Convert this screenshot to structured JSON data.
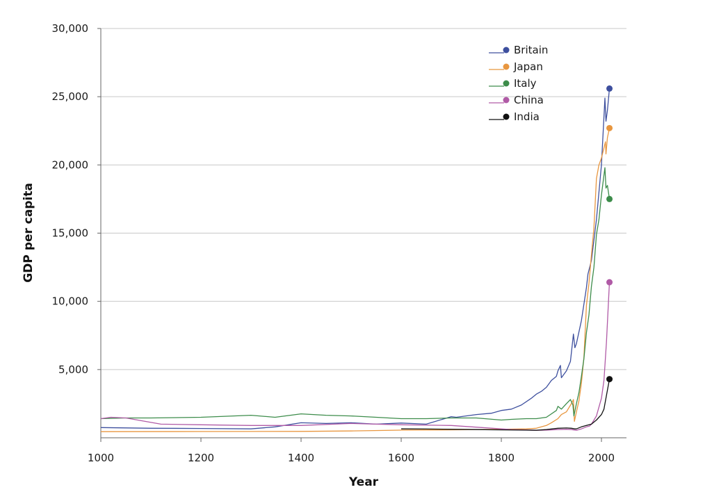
{
  "chart_data": {
    "type": "line",
    "xlabel": "Year",
    "ylabel": "GDP per capita",
    "xlim": [
      1000,
      2050
    ],
    "ylim": [
      0,
      30000
    ],
    "x_ticks": [
      1000,
      1200,
      1400,
      1600,
      1800,
      2000
    ],
    "x_tick_labels": [
      "1000",
      "1200",
      "1400",
      "1600",
      "1800",
      "2000"
    ],
    "y_ticks": [
      5000,
      10000,
      15000,
      20000,
      25000,
      30000
    ],
    "y_tick_labels": [
      "5,000",
      "10,000",
      "15,000",
      "20,000",
      "25,000",
      "30,000"
    ],
    "grid": "horizontal",
    "legend_position": "top-right",
    "series": [
      {
        "name": "Britain",
        "color": "#3d4f9e",
        "points": [
          [
            1000,
            750
          ],
          [
            1100,
            700
          ],
          [
            1200,
            680
          ],
          [
            1300,
            650
          ],
          [
            1348,
            800
          ],
          [
            1400,
            1100
          ],
          [
            1450,
            1050
          ],
          [
            1500,
            1100
          ],
          [
            1550,
            1000
          ],
          [
            1600,
            1080
          ],
          [
            1650,
            1000
          ],
          [
            1700,
            1550
          ],
          [
            1710,
            1500
          ],
          [
            1750,
            1700
          ],
          [
            1780,
            1800
          ],
          [
            1800,
            2000
          ],
          [
            1820,
            2100
          ],
          [
            1840,
            2400
          ],
          [
            1860,
            2900
          ],
          [
            1870,
            3200
          ],
          [
            1880,
            3400
          ],
          [
            1890,
            3700
          ],
          [
            1900,
            4200
          ],
          [
            1910,
            4500
          ],
          [
            1913,
            4900
          ],
          [
            1918,
            5300
          ],
          [
            1920,
            4400
          ],
          [
            1930,
            4900
          ],
          [
            1938,
            5600
          ],
          [
            1944,
            7600
          ],
          [
            1947,
            6600
          ],
          [
            1950,
            6900
          ],
          [
            1960,
            8600
          ],
          [
            1970,
            11000
          ],
          [
            1973,
            12000
          ],
          [
            1980,
            13000
          ],
          [
            1990,
            16000
          ],
          [
            2000,
            20000
          ],
          [
            2007,
            24900
          ],
          [
            2009,
            23200
          ],
          [
            2012,
            24000
          ],
          [
            2016,
            25600
          ]
        ]
      },
      {
        "name": "Japan",
        "color": "#e8963f",
        "points": [
          [
            1000,
            450
          ],
          [
            1200,
            460
          ],
          [
            1400,
            470
          ],
          [
            1500,
            500
          ],
          [
            1600,
            560
          ],
          [
            1700,
            580
          ],
          [
            1800,
            620
          ],
          [
            1850,
            650
          ],
          [
            1870,
            700
          ],
          [
            1890,
            900
          ],
          [
            1900,
            1100
          ],
          [
            1913,
            1400
          ],
          [
            1920,
            1700
          ],
          [
            1930,
            1900
          ],
          [
            1940,
            2500
          ],
          [
            1944,
            2800
          ],
          [
            1946,
            1200
          ],
          [
            1950,
            1900
          ],
          [
            1955,
            2700
          ],
          [
            1960,
            4000
          ],
          [
            1965,
            5900
          ],
          [
            1970,
            9700
          ],
          [
            1975,
            11300
          ],
          [
            1980,
            13400
          ],
          [
            1985,
            15400
          ],
          [
            1990,
            19000
          ],
          [
            1995,
            20000
          ],
          [
            2000,
            20500
          ],
          [
            2008,
            21700
          ],
          [
            2009,
            20800
          ],
          [
            2012,
            22000
          ],
          [
            2016,
            22700
          ]
        ]
      },
      {
        "name": "Italy",
        "color": "#3c8c4a",
        "points": [
          [
            1000,
            1400
          ],
          [
            1050,
            1450
          ],
          [
            1100,
            1450
          ],
          [
            1200,
            1500
          ],
          [
            1300,
            1650
          ],
          [
            1348,
            1500
          ],
          [
            1400,
            1750
          ],
          [
            1450,
            1650
          ],
          [
            1500,
            1600
          ],
          [
            1550,
            1500
          ],
          [
            1600,
            1400
          ],
          [
            1650,
            1400
          ],
          [
            1700,
            1450
          ],
          [
            1750,
            1450
          ],
          [
            1800,
            1300
          ],
          [
            1820,
            1350
          ],
          [
            1850,
            1400
          ],
          [
            1870,
            1400
          ],
          [
            1890,
            1500
          ],
          [
            1900,
            1750
          ],
          [
            1910,
            2000
          ],
          [
            1913,
            2300
          ],
          [
            1920,
            2100
          ],
          [
            1930,
            2500
          ],
          [
            1938,
            2800
          ],
          [
            1943,
            2400
          ],
          [
            1945,
            1600
          ],
          [
            1950,
            2500
          ],
          [
            1955,
            3300
          ],
          [
            1960,
            4500
          ],
          [
            1965,
            5800
          ],
          [
            1970,
            7700
          ],
          [
            1975,
            9000
          ],
          [
            1980,
            11100
          ],
          [
            1985,
            12500
          ],
          [
            1990,
            14900
          ],
          [
            1995,
            16000
          ],
          [
            2000,
            17800
          ],
          [
            2007,
            19800
          ],
          [
            2009,
            18300
          ],
          [
            2012,
            18500
          ],
          [
            2016,
            17500
          ]
        ]
      },
      {
        "name": "China",
        "color": "#b05aa6",
        "points": [
          [
            1000,
            1400
          ],
          [
            1020,
            1500
          ],
          [
            1050,
            1450
          ],
          [
            1120,
            1000
          ],
          [
            1200,
            950
          ],
          [
            1300,
            900
          ],
          [
            1400,
            900
          ],
          [
            1500,
            1050
          ],
          [
            1600,
            950
          ],
          [
            1700,
            900
          ],
          [
            1800,
            650
          ],
          [
            1820,
            600
          ],
          [
            1850,
            580
          ],
          [
            1870,
            550
          ],
          [
            1890,
            560
          ],
          [
            1913,
            600
          ],
          [
            1930,
            620
          ],
          [
            1940,
            600
          ],
          [
            1950,
            550
          ],
          [
            1960,
            650
          ],
          [
            1970,
            800
          ],
          [
            1976,
            850
          ],
          [
            1980,
            1000
          ],
          [
            1990,
            1600
          ],
          [
            2000,
            2900
          ],
          [
            2005,
            4200
          ],
          [
            2010,
            7000
          ],
          [
            2016,
            11400
          ]
        ]
      },
      {
        "name": "India",
        "color": "#111111",
        "points": [
          [
            1600,
            650
          ],
          [
            1650,
            640
          ],
          [
            1700,
            620
          ],
          [
            1750,
            600
          ],
          [
            1800,
            580
          ],
          [
            1850,
            560
          ],
          [
            1870,
            550
          ],
          [
            1890,
            600
          ],
          [
            1913,
            700
          ],
          [
            1930,
            720
          ],
          [
            1940,
            700
          ],
          [
            1947,
            650
          ],
          [
            1950,
            650
          ],
          [
            1960,
            800
          ],
          [
            1970,
            900
          ],
          [
            1980,
            1000
          ],
          [
            1990,
            1300
          ],
          [
            2000,
            1700
          ],
          [
            2005,
            2100
          ],
          [
            2010,
            3100
          ],
          [
            2016,
            4300
          ]
        ]
      }
    ]
  }
}
